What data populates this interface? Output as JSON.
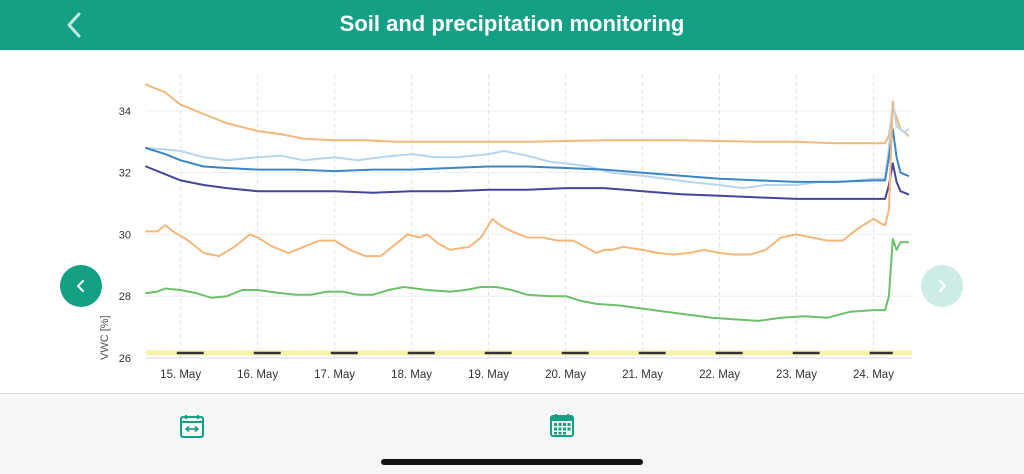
{
  "header": {
    "title": "Soil and precipitation monitoring",
    "back_icon": "chevron-left-icon"
  },
  "navigation": {
    "prev_icon": "chevron-left-icon",
    "next_icon": "chevron-right-icon",
    "prev_color": "#13a085",
    "next_color": "#cdece6"
  },
  "toolbar": {
    "date_range_icon": "calendar-range-icon",
    "calendar_icon": "calendar-icon"
  },
  "chart_data": {
    "type": "line",
    "ylabel": "VWC [%]",
    "xlabel": "",
    "ylim": [
      26,
      35
    ],
    "yticks": [
      26,
      28,
      30,
      32,
      34
    ],
    "xlim": [
      14.55,
      24.5
    ],
    "xticks": [
      {
        "x": 15,
        "label": "15. May"
      },
      {
        "x": 16,
        "label": "16. May"
      },
      {
        "x": 17,
        "label": "17. May"
      },
      {
        "x": 18,
        "label": "18. May"
      },
      {
        "x": 19,
        "label": "19. May"
      },
      {
        "x": 20,
        "label": "20. May"
      },
      {
        "x": 21,
        "label": "21. May"
      },
      {
        "x": 22,
        "label": "22. May"
      },
      {
        "x": 23,
        "label": "23. May"
      },
      {
        "x": 24,
        "label": "24. May"
      }
    ],
    "grid": {
      "vertical": true,
      "horizontal": true
    },
    "precipitation_band": {
      "color": "#f7f3a6",
      "y_from": 26.0,
      "y_to": 26.15
    },
    "night_markers": [
      [
        14.95,
        15.3
      ],
      [
        15.95,
        16.3
      ],
      [
        16.95,
        17.3
      ],
      [
        17.95,
        18.3
      ],
      [
        18.95,
        19.3
      ],
      [
        19.95,
        20.3
      ],
      [
        20.95,
        21.3
      ],
      [
        21.95,
        22.3
      ],
      [
        22.95,
        23.3
      ],
      [
        23.95,
        24.25
      ]
    ],
    "series": [
      {
        "color": "#f3b77b",
        "points": [
          [
            14.55,
            34.85
          ],
          [
            14.8,
            34.6
          ],
          [
            15.0,
            34.2
          ],
          [
            15.3,
            33.9
          ],
          [
            15.6,
            33.6
          ],
          [
            16.0,
            33.35
          ],
          [
            16.3,
            33.25
          ],
          [
            16.6,
            33.1
          ],
          [
            17.0,
            33.05
          ],
          [
            17.4,
            33.05
          ],
          [
            17.8,
            33.0
          ],
          [
            18.5,
            33.0
          ],
          [
            19.5,
            33.0
          ],
          [
            20.5,
            33.05
          ],
          [
            21.5,
            33.05
          ],
          [
            22.5,
            33.0
          ],
          [
            23.0,
            33.0
          ],
          [
            23.5,
            32.95
          ],
          [
            24.0,
            32.95
          ],
          [
            24.15,
            32.95
          ],
          [
            24.2,
            33.2
          ],
          [
            24.25,
            34.1
          ],
          [
            24.3,
            33.8
          ],
          [
            24.35,
            33.4
          ],
          [
            24.45,
            33.2
          ]
        ]
      },
      {
        "color": "#b7d5ec",
        "points": [
          [
            14.55,
            32.8
          ],
          [
            14.8,
            32.75
          ],
          [
            15.0,
            32.7
          ],
          [
            15.3,
            32.5
          ],
          [
            15.6,
            32.4
          ],
          [
            16.0,
            32.5
          ],
          [
            16.3,
            32.55
          ],
          [
            16.6,
            32.4
          ],
          [
            17.0,
            32.5
          ],
          [
            17.3,
            32.4
          ],
          [
            17.6,
            32.5
          ],
          [
            18.0,
            32.6
          ],
          [
            18.3,
            32.5
          ],
          [
            18.6,
            32.5
          ],
          [
            19.0,
            32.6
          ],
          [
            19.2,
            32.7
          ],
          [
            19.5,
            32.55
          ],
          [
            19.8,
            32.35
          ],
          [
            20.0,
            32.3
          ],
          [
            20.3,
            32.2
          ],
          [
            20.6,
            32.0
          ],
          [
            21.0,
            31.9
          ],
          [
            21.3,
            31.8
          ],
          [
            21.6,
            31.7
          ],
          [
            22.0,
            31.6
          ],
          [
            22.3,
            31.5
          ],
          [
            22.6,
            31.6
          ],
          [
            23.0,
            31.6
          ],
          [
            23.3,
            31.7
          ],
          [
            23.6,
            31.7
          ],
          [
            24.0,
            31.8
          ],
          [
            24.15,
            31.8
          ],
          [
            24.2,
            32.8
          ],
          [
            24.25,
            34.3
          ],
          [
            24.3,
            33.5
          ],
          [
            24.4,
            33.3
          ],
          [
            24.45,
            33.4
          ]
        ]
      },
      {
        "color": "#3b86c4",
        "points": [
          [
            14.55,
            32.8
          ],
          [
            14.8,
            32.6
          ],
          [
            15.0,
            32.4
          ],
          [
            15.3,
            32.2
          ],
          [
            15.6,
            32.15
          ],
          [
            16.0,
            32.1
          ],
          [
            16.5,
            32.1
          ],
          [
            17.0,
            32.05
          ],
          [
            17.5,
            32.1
          ],
          [
            18.0,
            32.1
          ],
          [
            18.5,
            32.15
          ],
          [
            19.0,
            32.2
          ],
          [
            19.5,
            32.2
          ],
          [
            20.0,
            32.15
          ],
          [
            20.5,
            32.1
          ],
          [
            21.0,
            32.0
          ],
          [
            21.5,
            31.9
          ],
          [
            22.0,
            31.8
          ],
          [
            22.5,
            31.75
          ],
          [
            23.0,
            31.7
          ],
          [
            23.5,
            31.7
          ],
          [
            24.0,
            31.75
          ],
          [
            24.15,
            31.75
          ],
          [
            24.2,
            32.5
          ],
          [
            24.25,
            33.4
          ],
          [
            24.3,
            32.5
          ],
          [
            24.35,
            32.0
          ],
          [
            24.45,
            31.9
          ]
        ]
      },
      {
        "color": "#43469a",
        "points": [
          [
            14.55,
            32.2
          ],
          [
            14.8,
            31.95
          ],
          [
            15.0,
            31.75
          ],
          [
            15.3,
            31.6
          ],
          [
            15.6,
            31.5
          ],
          [
            16.0,
            31.4
          ],
          [
            16.5,
            31.4
          ],
          [
            17.0,
            31.4
          ],
          [
            17.5,
            31.35
          ],
          [
            18.0,
            31.4
          ],
          [
            18.5,
            31.4
          ],
          [
            19.0,
            31.45
          ],
          [
            19.5,
            31.45
          ],
          [
            20.0,
            31.5
          ],
          [
            20.5,
            31.5
          ],
          [
            21.0,
            31.4
          ],
          [
            21.5,
            31.3
          ],
          [
            22.0,
            31.25
          ],
          [
            22.5,
            31.2
          ],
          [
            23.0,
            31.15
          ],
          [
            23.5,
            31.15
          ],
          [
            24.0,
            31.15
          ],
          [
            24.15,
            31.15
          ],
          [
            24.2,
            31.6
          ],
          [
            24.25,
            32.3
          ],
          [
            24.3,
            31.7
          ],
          [
            24.35,
            31.4
          ],
          [
            24.45,
            31.3
          ]
        ]
      },
      {
        "color": "#f3b77b",
        "points": [
          [
            14.55,
            30.1
          ],
          [
            14.7,
            30.1
          ],
          [
            14.8,
            30.3
          ],
          [
            14.9,
            30.1
          ],
          [
            15.1,
            29.8
          ],
          [
            15.3,
            29.4
          ],
          [
            15.5,
            29.3
          ],
          [
            15.7,
            29.6
          ],
          [
            15.9,
            30.0
          ],
          [
            16.0,
            29.9
          ],
          [
            16.2,
            29.6
          ],
          [
            16.4,
            29.4
          ],
          [
            16.6,
            29.6
          ],
          [
            16.8,
            29.8
          ],
          [
            17.0,
            29.8
          ],
          [
            17.2,
            29.5
          ],
          [
            17.4,
            29.3
          ],
          [
            17.6,
            29.3
          ],
          [
            17.8,
            29.7
          ],
          [
            17.95,
            30.0
          ],
          [
            18.1,
            29.9
          ],
          [
            18.2,
            30.0
          ],
          [
            18.35,
            29.7
          ],
          [
            18.5,
            29.5
          ],
          [
            18.75,
            29.6
          ],
          [
            18.9,
            29.9
          ],
          [
            19.05,
            30.5
          ],
          [
            19.15,
            30.3
          ],
          [
            19.3,
            30.1
          ],
          [
            19.5,
            29.9
          ],
          [
            19.7,
            29.9
          ],
          [
            19.9,
            29.8
          ],
          [
            20.1,
            29.8
          ],
          [
            20.25,
            29.6
          ],
          [
            20.4,
            29.4
          ],
          [
            20.5,
            29.5
          ],
          [
            20.6,
            29.5
          ],
          [
            20.75,
            29.6
          ],
          [
            21.0,
            29.5
          ],
          [
            21.2,
            29.4
          ],
          [
            21.4,
            29.35
          ],
          [
            21.6,
            29.4
          ],
          [
            21.8,
            29.5
          ],
          [
            22.0,
            29.4
          ],
          [
            22.2,
            29.35
          ],
          [
            22.4,
            29.35
          ],
          [
            22.6,
            29.5
          ],
          [
            22.8,
            29.9
          ],
          [
            23.0,
            30.0
          ],
          [
            23.2,
            29.9
          ],
          [
            23.4,
            29.8
          ],
          [
            23.6,
            29.8
          ],
          [
            23.8,
            30.2
          ],
          [
            24.0,
            30.5
          ],
          [
            24.1,
            30.35
          ],
          [
            24.15,
            30.3
          ],
          [
            24.2,
            30.8
          ],
          [
            24.25,
            34.3
          ]
        ]
      },
      {
        "color": "#6cc06a",
        "points": [
          [
            14.55,
            28.1
          ],
          [
            14.7,
            28.15
          ],
          [
            14.8,
            28.25
          ],
          [
            15.0,
            28.2
          ],
          [
            15.2,
            28.1
          ],
          [
            15.4,
            27.95
          ],
          [
            15.6,
            28.0
          ],
          [
            15.8,
            28.2
          ],
          [
            16.0,
            28.2
          ],
          [
            16.3,
            28.1
          ],
          [
            16.5,
            28.05
          ],
          [
            16.7,
            28.05
          ],
          [
            16.9,
            28.15
          ],
          [
            17.1,
            28.15
          ],
          [
            17.3,
            28.05
          ],
          [
            17.5,
            28.05
          ],
          [
            17.7,
            28.2
          ],
          [
            17.9,
            28.3
          ],
          [
            18.2,
            28.2
          ],
          [
            18.5,
            28.15
          ],
          [
            18.7,
            28.2
          ],
          [
            18.9,
            28.3
          ],
          [
            19.1,
            28.3
          ],
          [
            19.3,
            28.2
          ],
          [
            19.5,
            28.05
          ],
          [
            19.8,
            28.0
          ],
          [
            20.0,
            28.0
          ],
          [
            20.2,
            27.85
          ],
          [
            20.4,
            27.75
          ],
          [
            20.7,
            27.7
          ],
          [
            21.0,
            27.6
          ],
          [
            21.3,
            27.5
          ],
          [
            21.6,
            27.4
          ],
          [
            21.9,
            27.3
          ],
          [
            22.2,
            27.25
          ],
          [
            22.5,
            27.2
          ],
          [
            22.8,
            27.3
          ],
          [
            23.1,
            27.35
          ],
          [
            23.4,
            27.3
          ],
          [
            23.7,
            27.5
          ],
          [
            24.0,
            27.55
          ],
          [
            24.15,
            27.55
          ],
          [
            24.2,
            28.0
          ],
          [
            24.25,
            29.85
          ],
          [
            24.3,
            29.5
          ],
          [
            24.35,
            29.75
          ],
          [
            24.45,
            29.75
          ]
        ]
      }
    ]
  }
}
